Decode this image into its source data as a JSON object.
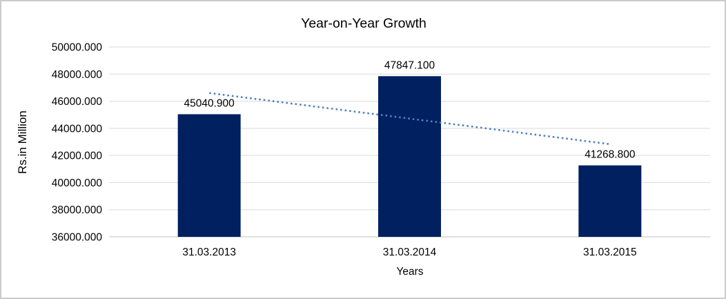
{
  "chart_data": {
    "type": "bar",
    "title": "Year-on-Year Growth",
    "xlabel": "Years",
    "ylabel": "Rs.in Million",
    "categories": [
      "31.03.2013",
      "31.03.2014",
      "31.03.2015"
    ],
    "values": [
      45040.9,
      47847.1,
      41268.8
    ],
    "data_labels": [
      "45040.900",
      "47847.100",
      "41268.800"
    ],
    "ylim": [
      36000,
      50000
    ],
    "ytick_step": 2000,
    "ytick_labels": [
      "36000.000",
      "38000.000",
      "40000.000",
      "42000.000",
      "44000.000",
      "46000.000",
      "48000.000",
      "50000.000"
    ],
    "grid": true,
    "legend_position": "none",
    "trendline": {
      "type": "linear",
      "style": "dotted",
      "start_value": 46605,
      "end_value": 42833
    }
  },
  "colors": {
    "bar": "#002060",
    "trendline": "#4F81BD",
    "gridline": "#D9D9D9",
    "axis_line": "#BFBFBF",
    "text": "#000000",
    "chart_border": "#CBCBCB",
    "background": "#FFFFFF"
  }
}
